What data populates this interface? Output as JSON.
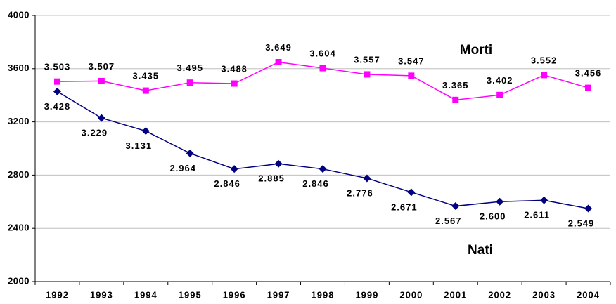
{
  "chart_data": {
    "type": "line",
    "categories": [
      "1992",
      "1993",
      "1994",
      "1995",
      "1996",
      "1997",
      "1998",
      "1999",
      "2000",
      "2001",
      "2002",
      "2003",
      "2004"
    ],
    "series": [
      {
        "name": "Morti",
        "color": "#ff00ff",
        "marker": "square",
        "values": [
          3503,
          3507,
          3435,
          3495,
          3488,
          3649,
          3604,
          3557,
          3547,
          3365,
          3402,
          3552,
          3456
        ],
        "value_labels": [
          "3.503",
          "3.507",
          "3.435",
          "3.495",
          "3.488",
          "3.649",
          "3.604",
          "3.557",
          "3.547",
          "3.365",
          "3.402",
          "3.552",
          "3.456"
        ]
      },
      {
        "name": "Nati",
        "color": "#000080",
        "marker": "diamond",
        "values": [
          3428,
          3229,
          3131,
          2964,
          2846,
          2885,
          2846,
          2776,
          2671,
          2567,
          2600,
          2611,
          2549
        ],
        "value_labels": [
          "3.428",
          "3.229",
          "3.131",
          "2.964",
          "2.846",
          "2.885",
          "2.846",
          "2.776",
          "2.671",
          "2.567",
          "2.600",
          "2.611",
          "2.549"
        ]
      }
    ],
    "ylim": [
      2000,
      4000
    ],
    "yticks": [
      2000,
      2400,
      2800,
      3200,
      3600,
      4000
    ],
    "grid": true
  }
}
